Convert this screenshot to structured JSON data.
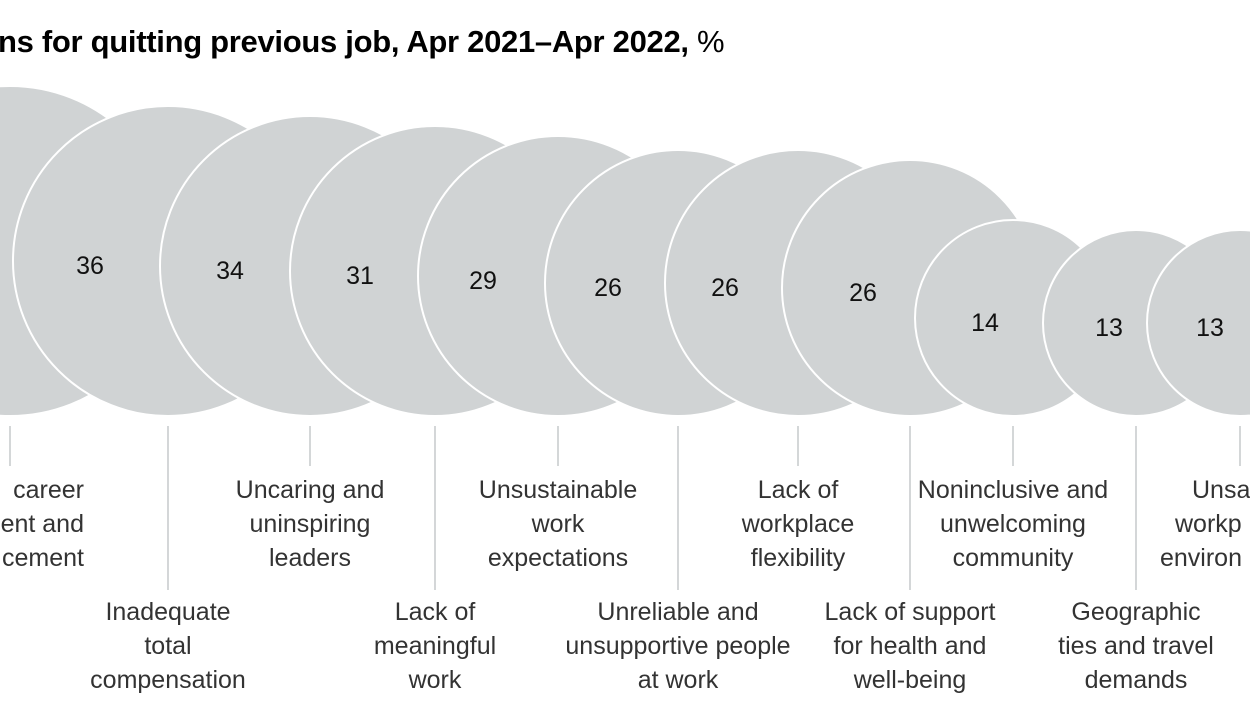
{
  "chart_data": {
    "type": "bubble",
    "title": "ns for quitting previous job, Apr 2021–Apr 2022,",
    "unit": "%",
    "categories": [
      [
        "career",
        "ment and",
        "cement"
      ],
      [
        "Inadequate",
        "total",
        "compensation"
      ],
      [
        "Uncaring and",
        "uninspiring",
        "leaders"
      ],
      [
        "Lack of",
        "meaningful",
        "work"
      ],
      [
        "Unsustainable",
        "work",
        "expectations"
      ],
      [
        "Unreliable and",
        "unsupportive people",
        "at work"
      ],
      [
        "Lack of",
        "workplace",
        "flexibility"
      ],
      [
        "Lack of support",
        "for health and",
        "well-being"
      ],
      [
        "Noninclusive and",
        "unwelcoming",
        "community"
      ],
      [
        "Geographic",
        "ties and travel",
        "demands"
      ],
      [
        "Unsa",
        "workp",
        "environ"
      ]
    ],
    "values": [
      null,
      36,
      34,
      31,
      29,
      26,
      26,
      26,
      14,
      13,
      13
    ],
    "colors": {
      "bubble": "#d0d3d4",
      "leader": "#b8bcbe"
    }
  }
}
